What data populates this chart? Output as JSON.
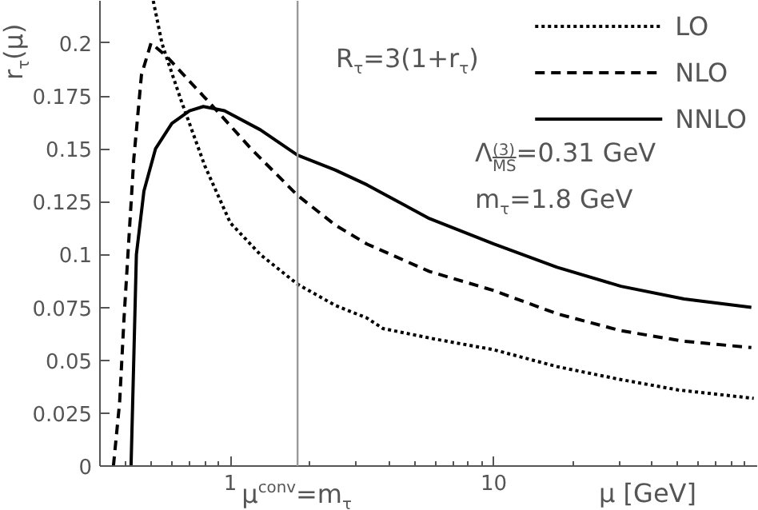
{
  "chart_data": {
    "type": "line",
    "xlabel": "μ [GeV]",
    "ylabel": "r$_{τ}$(μ)",
    "xlim": [
      0.32,
      100
    ],
    "ylim": [
      0,
      0.22
    ],
    "log": "x",
    "xticks": [
      {
        "value": 0.4,
        "label": null
      },
      {
        "value": 0.5,
        "label": null
      },
      {
        "value": 0.6,
        "label": null
      },
      {
        "value": 0.7,
        "label": null
      },
      {
        "value": 0.8,
        "label": null
      },
      {
        "value": 0.9,
        "label": null
      },
      1,
      {
        "value": 2,
        "label": null
      },
      {
        "value": 3,
        "label": null
      },
      {
        "value": 4,
        "label": null
      },
      {
        "value": 5,
        "label": null
      },
      {
        "value": 6,
        "label": null
      },
      {
        "value": 7,
        "label": null
      },
      {
        "value": 8,
        "label": null
      },
      {
        "value": 9,
        "label": null
      },
      10,
      {
        "value": 20,
        "label": null
      },
      {
        "value": 30,
        "label": null
      },
      {
        "value": 40,
        "label": null
      },
      {
        "value": 50,
        "label": null
      },
      {
        "value": 60,
        "label": null
      },
      {
        "value": 70,
        "label": null
      },
      {
        "value": 80,
        "label": null
      },
      {
        "value": 90,
        "label": null
      }
    ],
    "yticks": [
      0,
      0.025,
      0.05,
      0.075,
      0.1,
      0.125,
      0.15,
      0.175,
      0.2
    ],
    "grid": false,
    "legend": "top right",
    "marker": "none",
    "series": [
      {
        "name": "LO",
        "color": "#000000",
        "line_style": "dotted",
        "x": [
          0.51,
          0.55,
          0.57,
          0.65,
          0.8,
          1.0,
          1.3,
          1.8,
          2.5,
          3.3,
          3.8,
          6,
          10,
          17.4,
          30,
          50,
          97
        ],
        "values": [
          0.22,
          0.2,
          0.194,
          0.173,
          0.142,
          0.115,
          0.1,
          0.086,
          0.076,
          0.07,
          0.065,
          0.06,
          0.055,
          0.047,
          0.041,
          0.036,
          0.032
        ]
      },
      {
        "name": "NLO",
        "color": "#000000",
        "line_style": "dashed",
        "x": [
          0.36,
          0.38,
          0.395,
          0.43,
          0.46,
          0.5,
          0.57,
          0.7,
          0.86,
          1.2,
          1.8,
          2.5,
          3.3,
          5.7,
          10,
          17.4,
          30.4,
          52.8,
          95
        ],
        "values": [
          0,
          0.03,
          0.07,
          0.145,
          0.185,
          0.2,
          0.194,
          0.182,
          0.17,
          0.15,
          0.128,
          0.114,
          0.105,
          0.092,
          0.083,
          0.072,
          0.064,
          0.059,
          0.056
        ]
      },
      {
        "name": "NNLO",
        "color": "#000000",
        "line_style": "solid",
        "x": [
          0.42,
          0.43,
          0.44,
          0.47,
          0.52,
          0.6,
          0.7,
          0.79,
          0.95,
          1.3,
          1.8,
          2.5,
          3.3,
          5.7,
          10,
          17.4,
          30.4,
          52.8,
          95
        ],
        "values": [
          0,
          0.05,
          0.1,
          0.13,
          0.15,
          0.162,
          0.168,
          0.17,
          0.168,
          0.159,
          0.147,
          0.14,
          0.133,
          0.117,
          0.105,
          0.094,
          0.085,
          0.079,
          0.075
        ]
      }
    ],
    "ref_lines": [
      {
        "axis": "x",
        "value": 1.8,
        "label": "μ$^{conv}$=m$_{τ}$",
        "color": "#999999"
      }
    ],
    "annotations": [
      "R$_{τ}$=3(1+r$_{τ}$)",
      "Λ$^{(3)}$$_{MS}$=0.31 GeV",
      "m$_{τ}$=1.8 GeV"
    ]
  }
}
